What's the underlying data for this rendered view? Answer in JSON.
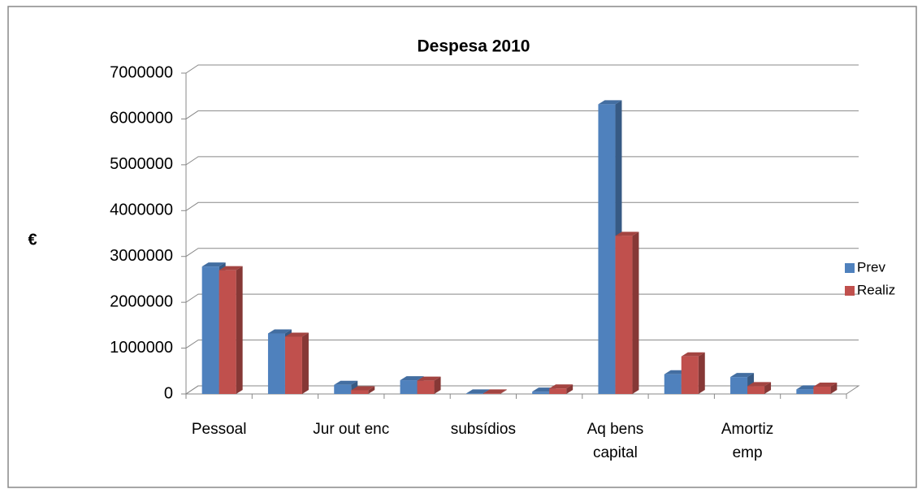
{
  "chart_data": {
    "type": "bar3d",
    "title": "Despesa 2010",
    "y_label": "€",
    "categories": [
      "Pessoal",
      null,
      "Jur out enc",
      null,
      "subsídios",
      null,
      "Aq bens capital",
      null,
      "Amortiz emp",
      null
    ],
    "series": [
      {
        "name": "Prev",
        "color": "#4f81bd",
        "values": [
          2780000,
          1320000,
          200000,
          300000,
          10000,
          50000,
          6320000,
          430000,
          370000,
          100000
        ]
      },
      {
        "name": "Realiz",
        "color": "#c0504d",
        "values": [
          2700000,
          1250000,
          80000,
          290000,
          10000,
          120000,
          3450000,
          820000,
          170000,
          160000
        ]
      }
    ],
    "ylim": [
      0,
      7000000
    ],
    "yticks": [
      0,
      1000000,
      2000000,
      3000000,
      4000000,
      5000000,
      6000000,
      7000000
    ],
    "grid": true,
    "legend": "right"
  }
}
